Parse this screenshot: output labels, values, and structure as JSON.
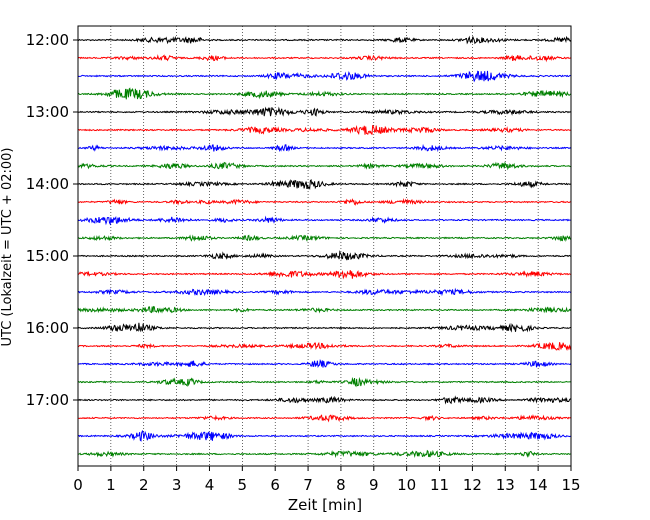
{
  "chart_data": {
    "type": "line",
    "subtype": "helicorder",
    "title": "",
    "xlabel": "Zeit  [min]",
    "ylabel": "UTC (Lokalzeit = UTC + 02:00)",
    "xlim": [
      0,
      15
    ],
    "x_ticks": [
      0,
      1,
      2,
      3,
      4,
      5,
      6,
      7,
      8,
      9,
      10,
      11,
      12,
      13,
      14,
      15
    ],
    "grid": "vertical dotted lines at each minute",
    "y_ticks": [
      {
        "label": "12:00",
        "trace_index": 0
      },
      {
        "label": "13:00",
        "trace_index": 4
      },
      {
        "label": "14:00",
        "trace_index": 8
      },
      {
        "label": "15:00",
        "trace_index": 12
      },
      {
        "label": "16:00",
        "trace_index": 16
      },
      {
        "label": "17:00",
        "trace_index": 20
      }
    ],
    "trace_interval_min": 15,
    "trace_count": 24,
    "trace_colors": [
      "#000000",
      "#ff0000",
      "#0000ff",
      "#008000"
    ],
    "traces": [
      {
        "start": "12:00",
        "color": "#000000"
      },
      {
        "start": "12:15",
        "color": "#ff0000"
      },
      {
        "start": "12:30",
        "color": "#0000ff"
      },
      {
        "start": "12:45",
        "color": "#008000"
      },
      {
        "start": "13:00",
        "color": "#000000"
      },
      {
        "start": "13:15",
        "color": "#ff0000"
      },
      {
        "start": "13:30",
        "color": "#0000ff"
      },
      {
        "start": "13:45",
        "color": "#008000"
      },
      {
        "start": "14:00",
        "color": "#000000"
      },
      {
        "start": "14:15",
        "color": "#ff0000"
      },
      {
        "start": "14:30",
        "color": "#0000ff"
      },
      {
        "start": "14:45",
        "color": "#008000"
      },
      {
        "start": "15:00",
        "color": "#000000"
      },
      {
        "start": "15:15",
        "color": "#ff0000"
      },
      {
        "start": "15:30",
        "color": "#0000ff"
      },
      {
        "start": "15:45",
        "color": "#008000"
      },
      {
        "start": "16:00",
        "color": "#000000"
      },
      {
        "start": "16:15",
        "color": "#ff0000"
      },
      {
        "start": "16:30",
        "color": "#0000ff"
      },
      {
        "start": "16:45",
        "color": "#008000"
      },
      {
        "start": "17:00",
        "color": "#000000"
      },
      {
        "start": "17:15",
        "color": "#ff0000"
      },
      {
        "start": "17:30",
        "color": "#0000ff"
      },
      {
        "start": "17:45",
        "color": "#008000"
      }
    ]
  }
}
